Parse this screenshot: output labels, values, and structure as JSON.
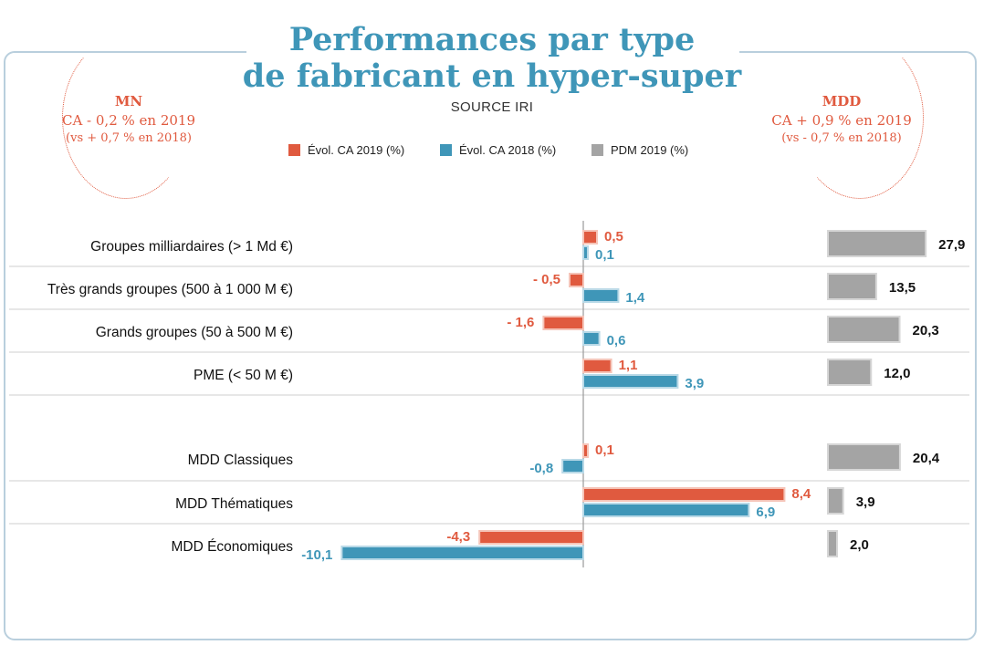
{
  "title_lines": [
    "Performances par type",
    "de fabricant en hyper-super"
  ],
  "source": "SOURCE IRI",
  "mn": {
    "heading": "MN",
    "line1": "CA - 0,2 % en 2019",
    "line2": "(vs + 0,7 % en 2018)"
  },
  "mdd": {
    "heading": "MDD",
    "line1": "CA + 0,9 % en 2019",
    "line2": "(vs - 0,7 % en 2018)"
  },
  "colors": {
    "evol2019": "#e05a3f",
    "evol2018": "#3f96b8",
    "pdm": "#a4a4a4",
    "title": "#3f96b8"
  },
  "legend": [
    {
      "label": "Évol. CA 2019 (%)",
      "color": "#e05a3f"
    },
    {
      "label": "Évol. CA 2018 (%)",
      "color": "#3f96b8"
    },
    {
      "label": "PDM 2019 (%)",
      "color": "#a4a4a4"
    }
  ],
  "chart_data": {
    "type": "bar",
    "orientation": "horizontal",
    "categories": [
      "Groupes milliardaires (> 1 Md €)",
      "Très grands groupes  (500 à 1 000 M €)",
      "Grands groupes (50 à 500 M €)",
      "PME (< 50 M €)",
      "MDD Classiques",
      "MDD Thématiques",
      "MDD Économiques"
    ],
    "series": [
      {
        "name": "Évol. CA 2019 (%)",
        "values": [
          0.5,
          -0.5,
          -1.6,
          1.1,
          0.1,
          8.4,
          -4.3
        ],
        "labels": [
          "0,5",
          "- 0,5",
          "- 1,6",
          "1,1",
          "0,1",
          "8,4",
          "-4,3"
        ],
        "color": "#e05a3f"
      },
      {
        "name": "Évol. CA 2018 (%)",
        "values": [
          0.1,
          1.4,
          0.6,
          3.9,
          -0.8,
          6.9,
          -10.1
        ],
        "labels": [
          "0,1",
          "1,4",
          "0,6",
          "3,9",
          "-0,8",
          "6,9",
          "-10,1"
        ],
        "color": "#3f96b8"
      },
      {
        "name": "PDM 2019 (%)",
        "values": [
          27.9,
          13.5,
          20.3,
          12.0,
          20.4,
          3.9,
          2.0
        ],
        "labels": [
          "27,9",
          "13,5",
          "20,3",
          "12,0",
          "20,4",
          "3,9",
          "2,0"
        ],
        "color": "#a4a4a4"
      }
    ],
    "groups": [
      "MN",
      "MDD"
    ],
    "grid": false
  }
}
